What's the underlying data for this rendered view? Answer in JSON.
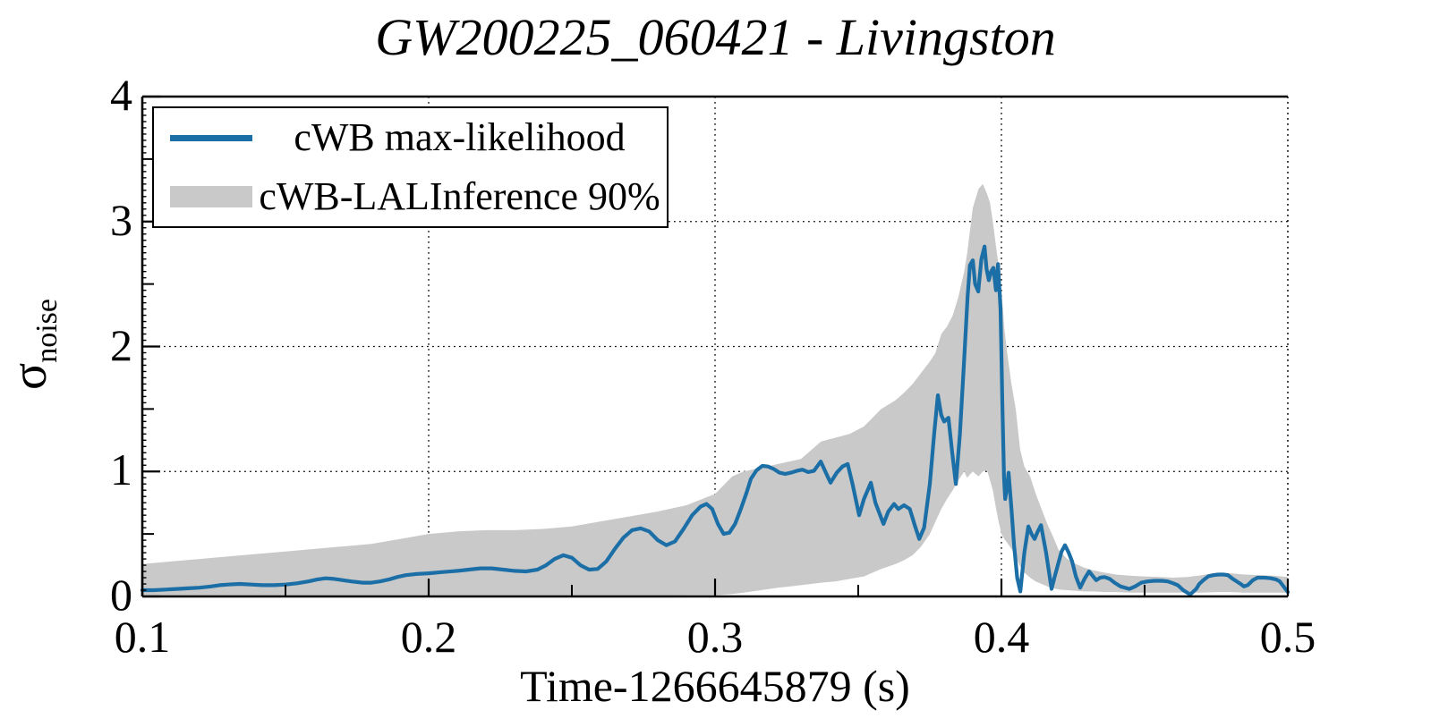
{
  "title": "GW200225_060421 - Livingston",
  "axes": {
    "xlabel": "Time-1266645879 (s)",
    "ylabel_symbol": "σ",
    "ylabel_subscript": "noise"
  },
  "legend": {
    "line_label": "cWB max-likelihood",
    "band_label": "cWB-LALInference 90%"
  },
  "colors": {
    "line": "#1b6fa6",
    "band": "#c9c9c9",
    "grid": "#000000",
    "frame": "#000000",
    "background": "#ffffff"
  },
  "chart_data": {
    "type": "line",
    "title": "GW200225_060421 - Livingston",
    "xlabel": "Time-1266645879 (s)",
    "ylabel": "sigma_noise",
    "xlim": [
      0.1,
      0.5
    ],
    "ylim": [
      0,
      4
    ],
    "x_ticks": [
      0.1,
      0.2,
      0.3,
      0.4,
      0.5
    ],
    "x_tick_labels": [
      "0.1",
      "0.2",
      "0.3",
      "0.4",
      "0.5"
    ],
    "y_ticks": [
      0,
      1,
      2,
      3,
      4
    ],
    "y_tick_labels": [
      "0",
      "1",
      "2",
      "3",
      "4"
    ],
    "grid": "dotted",
    "legend_position": "top-left",
    "series": [
      {
        "name": "cWB max-likelihood",
        "type": "line",
        "color": "#1b6fa6",
        "x": [
          0.1,
          0.104,
          0.108,
          0.112,
          0.116,
          0.12,
          0.124,
          0.127,
          0.13,
          0.134,
          0.138,
          0.142,
          0.146,
          0.15,
          0.154,
          0.158,
          0.161,
          0.164,
          0.167,
          0.17,
          0.173,
          0.177,
          0.18,
          0.183,
          0.186,
          0.189,
          0.192,
          0.196,
          0.2,
          0.205,
          0.21,
          0.214,
          0.218,
          0.222,
          0.226,
          0.23,
          0.234,
          0.238,
          0.241,
          0.244,
          0.247,
          0.25,
          0.253,
          0.256,
          0.259,
          0.262,
          0.265,
          0.268,
          0.271,
          0.274,
          0.277,
          0.28,
          0.283,
          0.286,
          0.289,
          0.292,
          0.295,
          0.297,
          0.299,
          0.301,
          0.303,
          0.305,
          0.307,
          0.309,
          0.311,
          0.3125,
          0.3145,
          0.3165,
          0.3185,
          0.3205,
          0.3225,
          0.3245,
          0.3265,
          0.3285,
          0.3305,
          0.3325,
          0.3345,
          0.3369,
          0.3385,
          0.3403,
          0.3425,
          0.3445,
          0.3463,
          0.348,
          0.3503,
          0.352,
          0.3544,
          0.356,
          0.3588,
          0.3605,
          0.3625,
          0.364,
          0.366,
          0.368,
          0.37,
          0.3713,
          0.373,
          0.375,
          0.3765,
          0.3778,
          0.379,
          0.38,
          0.3815,
          0.3828,
          0.3841,
          0.3855,
          0.387,
          0.3882,
          0.389,
          0.39,
          0.3908,
          0.3919,
          0.393,
          0.3941,
          0.3948,
          0.3956,
          0.3964,
          0.3972,
          0.3981,
          0.3988,
          0.3997,
          0.4003,
          0.4009,
          0.4013,
          0.402,
          0.4025,
          0.4035,
          0.4044,
          0.4055,
          0.4066,
          0.408,
          0.4094,
          0.4105,
          0.4116,
          0.4127,
          0.4138,
          0.4156,
          0.4175,
          0.4185,
          0.4197,
          0.421,
          0.4222,
          0.4235,
          0.4247,
          0.426,
          0.4275,
          0.429,
          0.4306,
          0.432,
          0.4331,
          0.4345,
          0.436,
          0.4378,
          0.4395,
          0.4416,
          0.4447,
          0.4467,
          0.4488,
          0.451,
          0.4534,
          0.456,
          0.4581,
          0.46,
          0.4616,
          0.4635,
          0.4659,
          0.468,
          0.4691,
          0.4705,
          0.4722,
          0.474,
          0.4759,
          0.4775,
          0.4791,
          0.4805,
          0.4822,
          0.4835,
          0.4847,
          0.486,
          0.4878,
          0.4894,
          0.492,
          0.4941,
          0.496,
          0.4972,
          0.4985,
          0.5
        ],
        "y": [
          0.05,
          0.05,
          0.055,
          0.06,
          0.065,
          0.07,
          0.08,
          0.09,
          0.095,
          0.1,
          0.095,
          0.09,
          0.09,
          0.095,
          0.105,
          0.12,
          0.135,
          0.145,
          0.14,
          0.13,
          0.12,
          0.11,
          0.11,
          0.12,
          0.135,
          0.155,
          0.17,
          0.18,
          0.185,
          0.195,
          0.205,
          0.215,
          0.225,
          0.225,
          0.215,
          0.205,
          0.2,
          0.215,
          0.25,
          0.3,
          0.33,
          0.31,
          0.25,
          0.215,
          0.22,
          0.28,
          0.38,
          0.47,
          0.53,
          0.545,
          0.52,
          0.45,
          0.41,
          0.44,
          0.54,
          0.65,
          0.72,
          0.74,
          0.7,
          0.58,
          0.5,
          0.51,
          0.58,
          0.7,
          0.83,
          0.94,
          1.01,
          1.045,
          1.04,
          1.02,
          0.99,
          0.98,
          0.99,
          1.005,
          1.015,
          0.995,
          1.005,
          1.08,
          1.0,
          0.91,
          0.99,
          1.04,
          1.06,
          0.9,
          0.65,
          0.78,
          0.91,
          0.75,
          0.58,
          0.68,
          0.74,
          0.7,
          0.73,
          0.7,
          0.55,
          0.46,
          0.55,
          0.9,
          1.3,
          1.61,
          1.45,
          1.4,
          1.43,
          1.15,
          0.9,
          1.3,
          1.9,
          2.4,
          2.65,
          2.69,
          2.5,
          2.44,
          2.7,
          2.8,
          2.62,
          2.53,
          2.6,
          2.63,
          2.45,
          2.66,
          2.3,
          1.55,
          0.95,
          0.78,
          0.88,
          0.99,
          0.7,
          0.41,
          0.15,
          0.04,
          0.35,
          0.56,
          0.5,
          0.46,
          0.52,
          0.57,
          0.35,
          0.06,
          0.15,
          0.25,
          0.36,
          0.41,
          0.35,
          0.28,
          0.16,
          0.07,
          0.14,
          0.2,
          0.16,
          0.13,
          0.15,
          0.155,
          0.14,
          0.11,
          0.08,
          0.06,
          0.08,
          0.11,
          0.12,
          0.125,
          0.125,
          0.12,
          0.105,
          0.09,
          0.05,
          0.015,
          0.06,
          0.1,
          0.13,
          0.16,
          0.17,
          0.175,
          0.175,
          0.17,
          0.145,
          0.12,
          0.1,
          0.08,
          0.09,
          0.13,
          0.15,
          0.15,
          0.145,
          0.135,
          0.12,
          0.08,
          0.035
        ]
      },
      {
        "name": "cWB-LALInference 90%",
        "type": "band",
        "color": "#c9c9c9",
        "x": [
          0.1,
          0.11,
          0.12,
          0.13,
          0.14,
          0.15,
          0.16,
          0.17,
          0.18,
          0.19,
          0.2,
          0.21,
          0.22,
          0.23,
          0.24,
          0.25,
          0.26,
          0.27,
          0.28,
          0.29,
          0.3,
          0.306,
          0.31,
          0.316,
          0.322,
          0.33,
          0.337,
          0.342,
          0.347,
          0.352,
          0.358,
          0.363,
          0.366,
          0.369,
          0.372,
          0.375,
          0.377,
          0.379,
          0.381,
          0.383,
          0.385,
          0.387,
          0.388,
          0.39,
          0.392,
          0.3935,
          0.395,
          0.396,
          0.397,
          0.398,
          0.399,
          0.4,
          0.401,
          0.402,
          0.4035,
          0.405,
          0.4065,
          0.408,
          0.41,
          0.412,
          0.414,
          0.416,
          0.418,
          0.42,
          0.423,
          0.426,
          0.429,
          0.432,
          0.436,
          0.44,
          0.445,
          0.45,
          0.455,
          0.46,
          0.465,
          0.47,
          0.475,
          0.48,
          0.485,
          0.49,
          0.495,
          0.5
        ],
        "lower": [
          0,
          0,
          0,
          0,
          0,
          0,
          0,
          0,
          0,
          0,
          0,
          0,
          0,
          0,
          0,
          0,
          0,
          0,
          0,
          0.01,
          0.01,
          0.02,
          0.03,
          0.05,
          0.07,
          0.09,
          0.11,
          0.12,
          0.14,
          0.16,
          0.22,
          0.26,
          0.29,
          0.33,
          0.4,
          0.5,
          0.6,
          0.7,
          0.78,
          0.85,
          0.93,
          1.0,
          0.95,
          1.0,
          0.96,
          1.0,
          1.01,
          0.93,
          0.85,
          0.72,
          0.6,
          0.5,
          0.46,
          0.43,
          0.38,
          0.32,
          0.24,
          0.19,
          0.15,
          0.12,
          0.1,
          0.08,
          0.065,
          0.055,
          0.05,
          0.045,
          0.04,
          0.04,
          0.035,
          0.035,
          0.03,
          0.03,
          0.03,
          0.03,
          0.03,
          0.03,
          0.035,
          0.035,
          0.03,
          0.03,
          0.03,
          0.03
        ],
        "upper": [
          0.26,
          0.28,
          0.3,
          0.32,
          0.34,
          0.36,
          0.38,
          0.4,
          0.42,
          0.46,
          0.5,
          0.52,
          0.53,
          0.53,
          0.54,
          0.56,
          0.6,
          0.64,
          0.68,
          0.73,
          0.82,
          0.96,
          1.0,
          1.03,
          1.06,
          1.1,
          1.24,
          1.27,
          1.3,
          1.36,
          1.5,
          1.57,
          1.63,
          1.7,
          1.79,
          1.88,
          1.95,
          2.1,
          2.16,
          2.25,
          2.4,
          2.6,
          2.74,
          3.11,
          3.26,
          3.3,
          3.22,
          3.15,
          3.0,
          2.82,
          2.65,
          2.45,
          2.15,
          1.95,
          1.7,
          1.5,
          1.18,
          1.04,
          0.96,
          0.82,
          0.7,
          0.58,
          0.48,
          0.37,
          0.3,
          0.26,
          0.23,
          0.21,
          0.19,
          0.175,
          0.165,
          0.16,
          0.155,
          0.15,
          0.155,
          0.17,
          0.19,
          0.185,
          0.175,
          0.17,
          0.165,
          0.155
        ]
      }
    ]
  }
}
